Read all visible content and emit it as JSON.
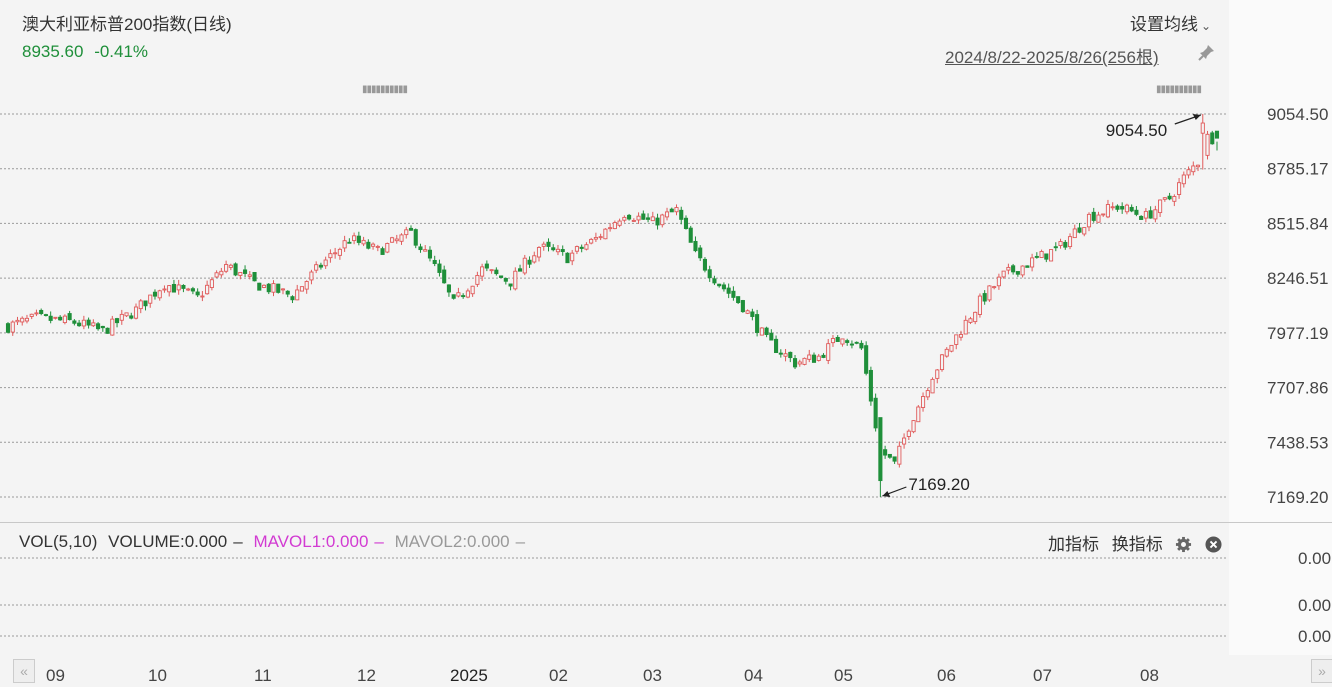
{
  "header": {
    "title": "澳大利亚标普200指数(日线)",
    "price": "8935.60",
    "change": "-0.41%",
    "ma_button": "设置均线",
    "range": "2024/8/22-2025/8/26(256根)"
  },
  "volume_panel": {
    "indicator": "VOL(5,10)",
    "volume": "VOLUME:0.000",
    "mavol1": "MAVOL1:0.000",
    "mavol2": "MAVOL2:0.000",
    "add_indicator": "加指标",
    "switch_indicator": "换指标",
    "y_labels": [
      "0.00",
      "0.00",
      "0.00"
    ]
  },
  "chart_data": {
    "type": "candlestick",
    "title": "澳大利亚标普200指数(日线)",
    "y_tick_labels": [
      "9054.50",
      "8785.17",
      "8515.84",
      "8246.51",
      "7977.19",
      "7707.86",
      "7438.53",
      "7169.20"
    ],
    "ylim": [
      7169.2,
      9054.5
    ],
    "x_tick_labels": [
      "09",
      "10",
      "11",
      "12",
      "2025",
      "02",
      "03",
      "04",
      "05",
      "06",
      "07",
      "08"
    ],
    "annotations": {
      "high": "9054.50",
      "low": "7169.20"
    },
    "grid": true,
    "close_series_approx": [
      [
        0,
        8010
      ],
      [
        6,
        8050
      ],
      [
        14,
        8030
      ],
      [
        20,
        7985
      ],
      [
        27,
        8090
      ],
      [
        33,
        8220
      ],
      [
        40,
        8150
      ],
      [
        46,
        8310
      ],
      [
        52,
        8220
      ],
      [
        60,
        8160
      ],
      [
        66,
        8310
      ],
      [
        72,
        8440
      ],
      [
        78,
        8380
      ],
      [
        85,
        8470
      ],
      [
        90,
        8300
      ],
      [
        94,
        8120
      ],
      [
        100,
        8290
      ],
      [
        106,
        8230
      ],
      [
        112,
        8400
      ],
      [
        118,
        8350
      ],
      [
        124,
        8440
      ],
      [
        130,
        8570
      ],
      [
        136,
        8520
      ],
      [
        141,
        8580
      ],
      [
        145,
        8360
      ],
      [
        150,
        8220
      ],
      [
        155,
        8110
      ],
      [
        160,
        7940
      ],
      [
        166,
        7830
      ],
      [
        171,
        7860
      ],
      [
        176,
        7970
      ],
      [
        180,
        7900
      ],
      [
        184,
        7400
      ],
      [
        187,
        7330
      ],
      [
        190,
        7520
      ],
      [
        195,
        7770
      ],
      [
        200,
        7960
      ],
      [
        205,
        8130
      ],
      [
        210,
        8260
      ],
      [
        216,
        8330
      ],
      [
        222,
        8400
      ],
      [
        228,
        8550
      ],
      [
        234,
        8600
      ],
      [
        240,
        8550
      ],
      [
        245,
        8640
      ],
      [
        248,
        8740
      ],
      [
        251,
        8820
      ],
      [
        253,
        8940
      ],
      [
        255,
        8935.6
      ]
    ]
  }
}
